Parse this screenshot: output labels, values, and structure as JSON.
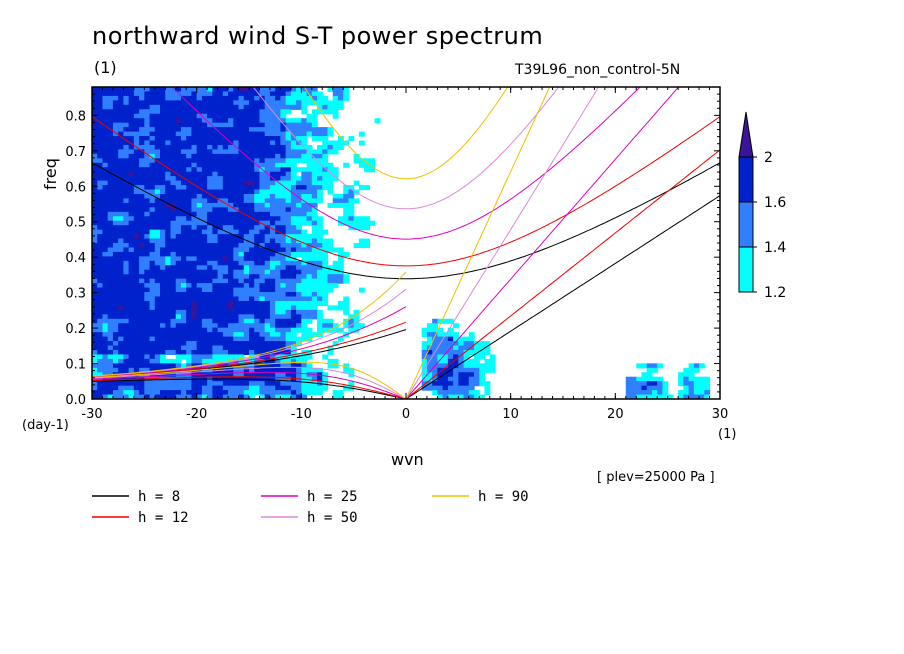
{
  "title": "northward wind S-T power spectrum",
  "units_label": "(1)",
  "run_label": "T39L96_non_control-5N",
  "level_label": "[ plev=25000 Pa ]",
  "chart_data": {
    "type": "heatmap",
    "xlabel": "wvn",
    "ylabel": "freq",
    "x_units": "(1)",
    "y_units": "(day-1)",
    "xlim": [
      -30,
      30
    ],
    "ylim": [
      0,
      0.88
    ],
    "xticks": [
      -30,
      -20,
      -10,
      0,
      10,
      20,
      30
    ],
    "yticks": [
      0.0,
      0.1,
      0.2,
      0.3,
      0.4,
      0.5,
      0.6,
      0.7,
      0.8
    ],
    "xtick_labels": [
      "-30",
      "-20",
      "-10",
      "0",
      "10",
      "20",
      "30"
    ],
    "ytick_labels": [
      "0.0",
      "0.1",
      "0.2",
      "0.3",
      "0.4",
      "0.5",
      "0.6",
      "0.7",
      "0.8"
    ],
    "colorbar": {
      "levels": [
        1.2,
        1.4,
        1.6,
        2
      ],
      "labels": [
        "1.2",
        "1.4",
        "1.6",
        "2"
      ],
      "colors": [
        "#00ffff",
        "#2f7fff",
        "#0022cc",
        "#3a1499"
      ]
    },
    "dispersion_curves": [
      {
        "label": "h =  8",
        "h": 8,
        "color": "#000000"
      },
      {
        "label": "h = 12",
        "h": 12,
        "color": "#ee0000"
      },
      {
        "label": "h = 25",
        "h": 25,
        "color": "#dd00bb"
      },
      {
        "label": "h = 50",
        "h": 50,
        "color": "#dd88dd"
      },
      {
        "label": "h = 90",
        "h": 90,
        "color": "#f0c000"
      }
    ]
  }
}
